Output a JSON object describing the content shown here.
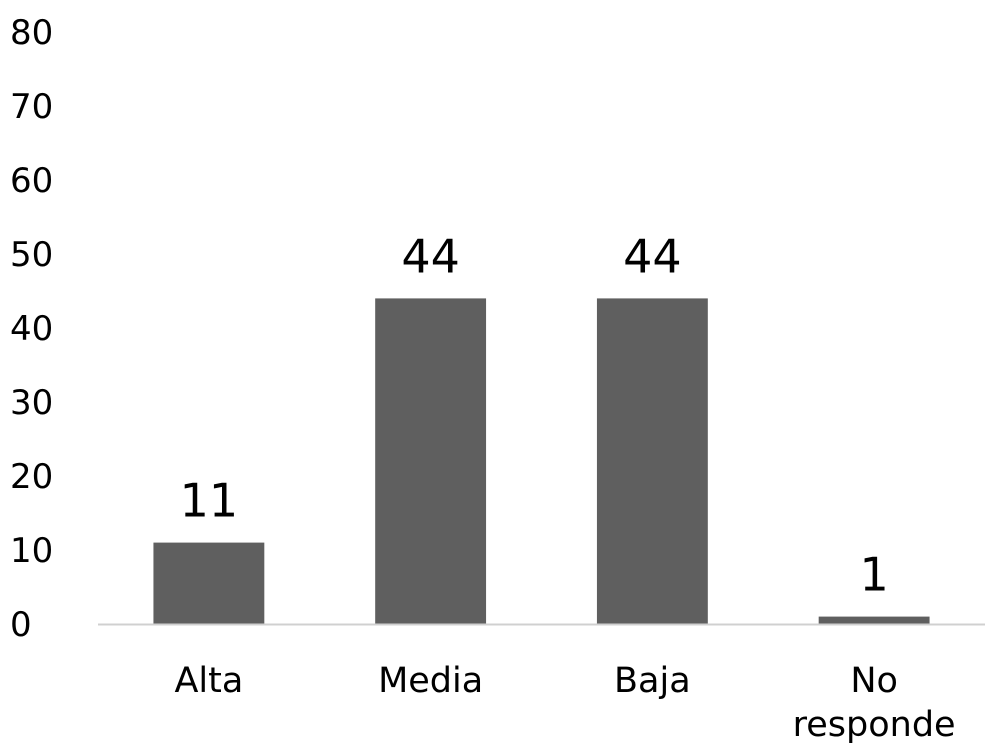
{
  "chart_data": {
    "type": "bar",
    "categories": [
      "Alta",
      "Media",
      "Baja",
      "No responde"
    ],
    "category_lines": [
      [
        "Alta"
      ],
      [
        "Media"
      ],
      [
        "Baja"
      ],
      [
        "No",
        "responde"
      ]
    ],
    "values": [
      11,
      44,
      44,
      1
    ],
    "data_labels": [
      "11",
      "44",
      "44",
      "1"
    ],
    "ylim": [
      0,
      80
    ],
    "yticks": [
      0,
      10,
      20,
      30,
      40,
      50,
      60,
      70,
      80
    ],
    "ytick_labels": [
      "0",
      "10",
      "20",
      "30",
      "40",
      "50",
      "60",
      "70",
      "80"
    ],
    "grid": false,
    "legend": "none",
    "colors": {
      "bar": "#5f5f5f",
      "axis": "#d0d0d0",
      "text": "#000000"
    }
  }
}
